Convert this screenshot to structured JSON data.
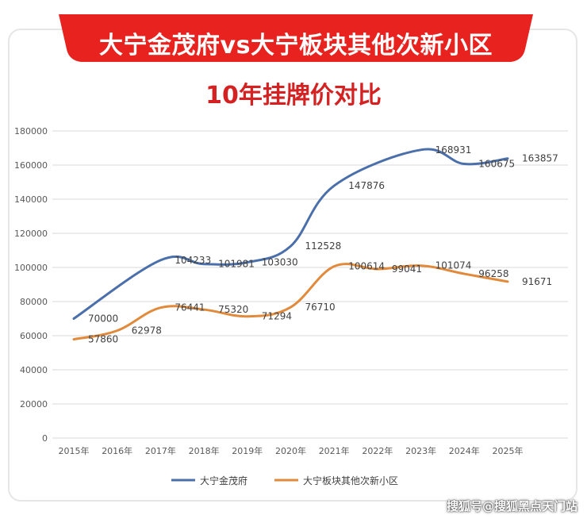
{
  "header": {
    "title": "大宁金茂府vs大宁板块其他次新小区",
    "subtitle": "10年挂牌价对比"
  },
  "watermark": "搜狐号@搜狐黑点天门站",
  "colors": {
    "banner": "#e8231f",
    "series1": "#4a6fab",
    "series2": "#e28a3b",
    "grid": "#d9d9d9",
    "axis_text": "#595959"
  },
  "chart_data": {
    "type": "line",
    "categories": [
      "2015年",
      "2016年",
      "2017年",
      "2018年",
      "2019年",
      "2020年",
      "2021年",
      "2022年",
      "2023年",
      "2024年",
      "2025年"
    ],
    "ylim": [
      0,
      180000
    ],
    "yticks": [
      "0",
      "20000",
      "40000",
      "60000",
      "80000",
      "100000",
      "120000",
      "140000",
      "160000",
      "180000"
    ],
    "grid": true,
    "legend_position": "bottom",
    "smooth": true,
    "series": [
      {
        "name": "大宁金茂府",
        "points": [
          {
            "x": "2015年",
            "y": 70000,
            "label": "70000"
          },
          {
            "x": "2017年",
            "y": 104233,
            "label": "104233"
          },
          {
            "x": "2018年",
            "y": 101981,
            "label": "101981"
          },
          {
            "x": "2019年",
            "y": 103030,
            "label": "103030"
          },
          {
            "x": "2020年",
            "y": 112528,
            "label": "112528"
          },
          {
            "x": "2021年",
            "y": 147876,
            "label": "147876"
          },
          {
            "x": "2023年",
            "y": 168931,
            "label": "168931"
          },
          {
            "x": "2024年",
            "y": 160675,
            "label": "160675"
          },
          {
            "x": "2025年",
            "y": 163857,
            "label": "163857"
          }
        ]
      },
      {
        "name": "大宁板块其他次新小区",
        "points": [
          {
            "x": "2015年",
            "y": 57860,
            "label": "57860"
          },
          {
            "x": "2016年",
            "y": 62978,
            "label": "62978"
          },
          {
            "x": "2017年",
            "y": 76441,
            "label": "76441"
          },
          {
            "x": "2018年",
            "y": 75320,
            "label": "75320"
          },
          {
            "x": "2019年",
            "y": 71294,
            "label": "71294"
          },
          {
            "x": "2020年",
            "y": 76710,
            "label": "76710"
          },
          {
            "x": "2021年",
            "y": 100614,
            "label": "100614"
          },
          {
            "x": "2022年",
            "y": 99041,
            "label": "99041"
          },
          {
            "x": "2023年",
            "y": 101074,
            "label": "101074"
          },
          {
            "x": "2024年",
            "y": 96258,
            "label": "96258"
          },
          {
            "x": "2025年",
            "y": 91671,
            "label": "91671"
          }
        ]
      }
    ]
  }
}
